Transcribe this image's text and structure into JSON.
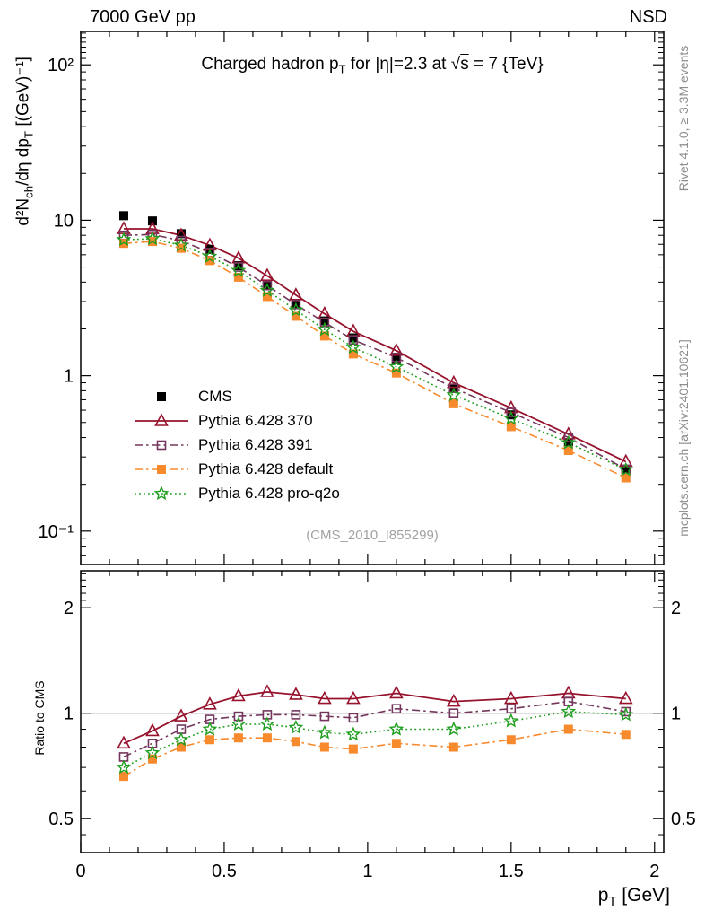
{
  "header": {
    "left": "7000 GeV pp",
    "right": "NSD"
  },
  "title": {
    "part1": "Charged hadron p",
    "sub1": "T",
    "part2": " for |η|=2.3 at ",
    "sqrt": "√",
    "sbar": "s",
    "part3": " = 7 {TeV}"
  },
  "main_ylabel": {
    "part1": "d²N",
    "sub1": "ch",
    "part2": "/dη dp",
    "sub2": "T",
    "part3": " [(GeV)⁻¹]"
  },
  "ratio_ylabel": "Ratio to CMS",
  "xlabel": {
    "part1": "p",
    "sub1": "T",
    "part2": " [GeV]"
  },
  "watermark": "(CMS_2010_I855299)",
  "side_notes": {
    "top": "Rivet 4.1.0, ≥ 3.3M events",
    "bottom": "mcplots.cern.ch [arXiv:2401.10621]"
  },
  "chart_data": [
    {
      "id": "main",
      "type": "line",
      "yscale": "log",
      "xlim": [
        0,
        2.032
      ],
      "ylim": [
        0.061,
        164
      ],
      "xticks": [
        {
          "v": 0,
          "label": "0"
        },
        {
          "v": 0.5,
          "label": "0.5"
        },
        {
          "v": 1,
          "label": "1"
        },
        {
          "v": 1.5,
          "label": "1.5"
        },
        {
          "v": 2,
          "label": "2"
        }
      ],
      "xminor_step": 0.1,
      "yticks": [
        {
          "v": 100,
          "label": "10²"
        },
        {
          "v": 10,
          "label": "10"
        },
        {
          "v": 1,
          "label": "1"
        },
        {
          "v": 0.1,
          "label": "10⁻¹"
        }
      ],
      "yminor_extra": [
        110,
        120,
        130,
        140,
        150,
        160
      ],
      "x": [
        0.15,
        0.25,
        0.35,
        0.45,
        0.55,
        0.65,
        0.75,
        0.85,
        0.95,
        1.1,
        1.3,
        1.5,
        1.7,
        1.9
      ],
      "series": [
        {
          "name": "CMS",
          "color": "#000000",
          "marker": "filled-square",
          "line": "none",
          "values": [
            10.7,
            9.9,
            8.2,
            6.5,
            5.1,
            3.8,
            2.9,
            2.25,
            1.75,
            1.27,
            0.83,
            0.56,
            0.37,
            0.25
          ]
        },
        {
          "name": "Pythia 6.428 370",
          "color": "#97132d",
          "marker": "open-triangle",
          "line": "solid",
          "values": [
            8.8,
            8.8,
            8.0,
            6.9,
            5.7,
            4.4,
            3.3,
            2.5,
            1.93,
            1.45,
            0.9,
            0.62,
            0.42,
            0.28
          ]
        },
        {
          "name": "Pythia 6.428 391",
          "color": "#74365c",
          "marker": "open-square",
          "line": "dashdot",
          "values": [
            8.0,
            8.1,
            7.4,
            6.2,
            5.0,
            3.8,
            2.87,
            2.2,
            1.7,
            1.31,
            0.83,
            0.58,
            0.4,
            0.25
          ]
        },
        {
          "name": "Pythia 6.428 default",
          "color": "#f78a2d",
          "marker": "filled-square",
          "line": "dashdot",
          "values": [
            7.1,
            7.3,
            6.6,
            5.5,
            4.3,
            3.23,
            2.41,
            1.8,
            1.38,
            1.04,
            0.66,
            0.47,
            0.33,
            0.22
          ]
        },
        {
          "name": "Pythia 6.428 pro-q2o",
          "color": "#1f9e1f",
          "marker": "open-star",
          "line": "dotted",
          "values": [
            7.5,
            7.6,
            6.9,
            5.85,
            4.74,
            3.53,
            2.64,
            1.98,
            1.52,
            1.14,
            0.75,
            0.53,
            0.37,
            0.248
          ]
        }
      ]
    },
    {
      "id": "ratio",
      "type": "line",
      "yscale": "log",
      "ylabel": "Ratio to CMS",
      "xlim": [
        0,
        2.032
      ],
      "ylim": [
        0.4,
        2.55
      ],
      "xticks": [
        {
          "v": 0,
          "label": "0"
        },
        {
          "v": 0.5,
          "label": "0.5"
        },
        {
          "v": 1,
          "label": "1"
        },
        {
          "v": 1.5,
          "label": "1.5"
        },
        {
          "v": 2,
          "label": "2"
        }
      ],
      "xminor_step": 0.1,
      "yticks": [
        {
          "v": 2,
          "label": "2"
        },
        {
          "v": 1,
          "label": "1"
        },
        {
          "v": 0.5,
          "label": "0.5"
        }
      ],
      "yminor": [
        0.45,
        0.6,
        0.7,
        0.8,
        0.9,
        2.1,
        2.2,
        2.3,
        2.4,
        2.5
      ],
      "reference_line": 1,
      "x": [
        0.15,
        0.25,
        0.35,
        0.45,
        0.55,
        0.65,
        0.75,
        0.85,
        0.95,
        1.1,
        1.3,
        1.5,
        1.7,
        1.9
      ],
      "series": [
        {
          "name": "Pythia 6.428 370",
          "color": "#97132d",
          "marker": "open-triangle",
          "line": "solid",
          "values": [
            0.82,
            0.89,
            0.98,
            1.06,
            1.12,
            1.15,
            1.13,
            1.1,
            1.1,
            1.14,
            1.08,
            1.1,
            1.14,
            1.1
          ]
        },
        {
          "name": "Pythia 6.428 391",
          "color": "#74365c",
          "marker": "open-square",
          "line": "dashdot",
          "values": [
            0.75,
            0.82,
            0.9,
            0.96,
            0.98,
            0.99,
            0.99,
            0.98,
            0.97,
            1.03,
            1.0,
            1.03,
            1.08,
            1.01
          ]
        },
        {
          "name": "Pythia 6.428 default",
          "color": "#f78a2d",
          "marker": "filled-square",
          "line": "dashdot",
          "values": [
            0.66,
            0.74,
            0.8,
            0.84,
            0.85,
            0.85,
            0.83,
            0.8,
            0.79,
            0.82,
            0.8,
            0.84,
            0.9,
            0.87
          ]
        },
        {
          "name": "Pythia 6.428 pro-q2o",
          "color": "#1f9e1f",
          "marker": "open-star",
          "line": "dotted",
          "values": [
            0.7,
            0.77,
            0.84,
            0.9,
            0.93,
            0.93,
            0.91,
            0.88,
            0.87,
            0.9,
            0.9,
            0.95,
            1.01,
            0.99
          ]
        }
      ]
    }
  ]
}
